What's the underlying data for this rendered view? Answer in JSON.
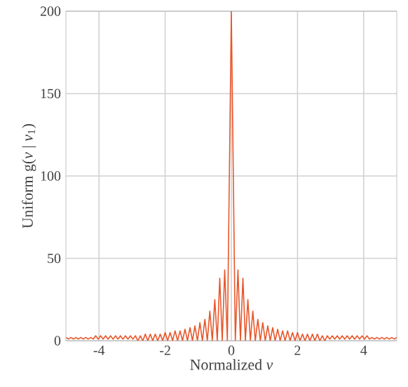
{
  "chart_data": {
    "type": "line",
    "xlabel": "Normalized *ν*",
    "ylabel": "Uniform g(*ν* | *ν*$_{1}$)",
    "xlim": [
      -5,
      5
    ],
    "ylim": [
      0,
      200
    ],
    "xticks": [
      -4,
      -2,
      0,
      2,
      4
    ],
    "yticks": [
      0,
      50,
      100,
      150,
      200
    ],
    "grid": true,
    "marker": "none",
    "line_style": "solid",
    "series": [
      {
        "color": "#e8562a",
        "x": [
          -5.0,
          -4.925,
          -4.85,
          -4.775,
          -4.7,
          -4.625,
          -4.55,
          -4.475,
          -4.4,
          -4.325,
          -4.25,
          -4.175,
          -4.1,
          -4.025,
          -3.95,
          -3.875,
          -3.8,
          -3.725,
          -3.65,
          -3.575,
          -3.5,
          -3.425,
          -3.35,
          -3.275,
          -3.2,
          -3.125,
          -3.05,
          -2.975,
          -2.9,
          -2.825,
          -2.75,
          -2.675,
          -2.6,
          -2.525,
          -2.45,
          -2.375,
          -2.3,
          -2.225,
          -2.15,
          -2.075,
          -2.0,
          -1.925,
          -1.85,
          -1.775,
          -1.7,
          -1.625,
          -1.55,
          -1.475,
          -1.4,
          -1.325,
          -1.25,
          -1.175,
          -1.1,
          -1.025,
          -0.95,
          -0.875,
          -0.8,
          -0.725,
          -0.65,
          -0.575,
          -0.5,
          -0.425,
          -0.35,
          -0.275,
          -0.2,
          -0.12,
          0,
          0.12,
          0.2,
          0.275,
          0.35,
          0.425,
          0.5,
          0.575,
          0.65,
          0.725,
          0.8,
          0.875,
          0.95,
          1.025,
          1.1,
          1.175,
          1.25,
          1.325,
          1.4,
          1.475,
          1.55,
          1.625,
          1.7,
          1.775,
          1.85,
          1.925,
          2.0,
          2.075,
          2.15,
          2.225,
          2.3,
          2.375,
          2.45,
          2.525,
          2.6,
          2.675,
          2.75,
          2.825,
          2.9,
          2.975,
          3.05,
          3.125,
          3.2,
          3.275,
          3.35,
          3.425,
          3.5,
          3.575,
          3.65,
          3.725,
          3.8,
          3.875,
          3.95,
          4.025,
          4.1,
          4.175,
          4.25,
          4.325,
          4.4,
          4.475,
          4.55,
          4.625,
          4.7,
          4.775,
          4.85,
          4.925,
          5.0
        ],
        "values": [
          2,
          1,
          2,
          1,
          2,
          1,
          2,
          1,
          2,
          1,
          2,
          1,
          3,
          1,
          3,
          1,
          3,
          1,
          3,
          1,
          3,
          1,
          3,
          1,
          3,
          1,
          3,
          1,
          3,
          0,
          3,
          0,
          4,
          0,
          4,
          0,
          4,
          0,
          4,
          0,
          5,
          0,
          5,
          0,
          6,
          0,
          6,
          0,
          7,
          0,
          8,
          0,
          9,
          0,
          11,
          0,
          13,
          0,
          18,
          0,
          25,
          0,
          38,
          0,
          43,
          0,
          200,
          0,
          43,
          0,
          38,
          0,
          25,
          0,
          18,
          0,
          13,
          0,
          11,
          0,
          9,
          0,
          8,
          0,
          7,
          0,
          6,
          0,
          6,
          0,
          5,
          0,
          5,
          0,
          4,
          0,
          4,
          0,
          4,
          0,
          4,
          0,
          3,
          0,
          3,
          1,
          3,
          1,
          3,
          1,
          3,
          1,
          3,
          1,
          3,
          1,
          3,
          1,
          3,
          1,
          3,
          1,
          2,
          1,
          2,
          1,
          2,
          1,
          2,
          1,
          2,
          1,
          2
        ]
      }
    ]
  }
}
